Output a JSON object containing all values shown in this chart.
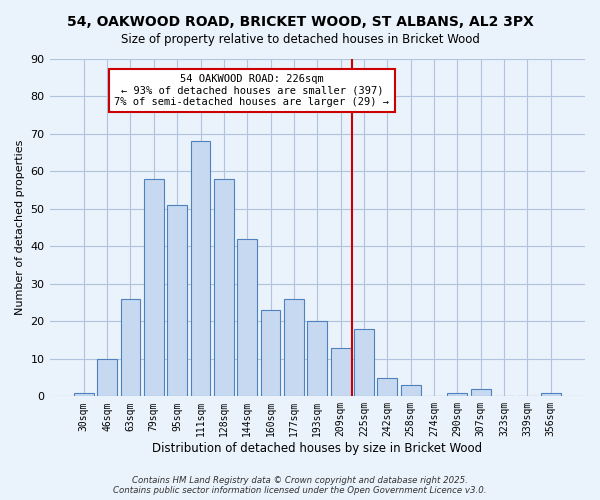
{
  "title_line1": "54, OAKWOOD ROAD, BRICKET WOOD, ST ALBANS, AL2 3PX",
  "title_line2": "Size of property relative to detached houses in Bricket Wood",
  "xlabel": "Distribution of detached houses by size in Bricket Wood",
  "ylabel": "Number of detached properties",
  "bar_labels": [
    "30sqm",
    "46sqm",
    "63sqm",
    "79sqm",
    "95sqm",
    "111sqm",
    "128sqm",
    "144sqm",
    "160sqm",
    "177sqm",
    "193sqm",
    "209sqm",
    "225sqm",
    "242sqm",
    "258sqm",
    "274sqm",
    "290sqm",
    "307sqm",
    "323sqm",
    "339sqm",
    "356sqm"
  ],
  "bar_values": [
    1,
    10,
    26,
    58,
    51,
    68,
    58,
    42,
    23,
    26,
    20,
    13,
    18,
    5,
    3,
    0,
    1,
    2,
    0,
    0,
    1
  ],
  "bar_color": "#c6d9f1",
  "bar_edge_color": "#4f81bd",
  "grid_color": "#b0c4de",
  "vline_x": 11.5,
  "vline_color": "#cc0000",
  "annotation_title": "54 OAKWOOD ROAD: 226sqm",
  "annotation_line1": "← 93% of detached houses are smaller (397)",
  "annotation_line2": "7% of semi-detached houses are larger (29) →",
  "annotation_box_color": "#ffffff",
  "annotation_box_edge": "#cc0000",
  "ylim": [
    0,
    90
  ],
  "yticks": [
    0,
    10,
    20,
    30,
    40,
    50,
    60,
    70,
    80,
    90
  ],
  "footer_line1": "Contains HM Land Registry data © Crown copyright and database right 2025.",
  "footer_line2": "Contains public sector information licensed under the Open Government Licence v3.0.",
  "bg_color": "#eaf2fb"
}
